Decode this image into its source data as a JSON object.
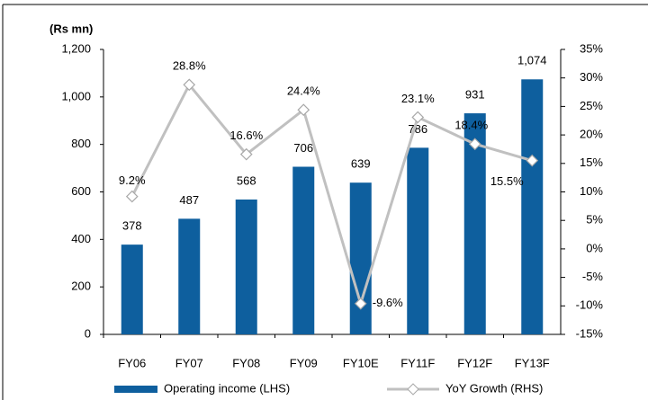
{
  "chart_data": {
    "type": "bar",
    "y_label": "(Rs mn)",
    "categories": [
      "FY06",
      "FY07",
      "FY08",
      "FY09",
      "FY10E",
      "FY11F",
      "FY12F",
      "FY13F"
    ],
    "series": [
      {
        "name": "Operating income (LHS)",
        "type": "bar",
        "color": "#0e5f9e",
        "values": [
          378,
          487,
          568,
          706,
          639,
          786,
          931,
          1074
        ],
        "value_labels": [
          "378",
          "487",
          "568",
          "706",
          "639",
          "786",
          "931",
          "1,074"
        ]
      },
      {
        "name": "YoY Growth (RHS)",
        "type": "line",
        "axis": "y2",
        "color": "#c0c0c0",
        "values": [
          9.2,
          28.8,
          16.6,
          24.4,
          -9.6,
          23.1,
          18.4,
          15.5
        ],
        "value_labels": [
          "9.2%",
          "28.8%",
          "16.6%",
          "24.4%",
          "-9.6%",
          "23.1%",
          "18.4%",
          "15.5%"
        ]
      }
    ],
    "ylim": [
      0,
      1200
    ],
    "yticks": [
      0,
      200,
      400,
      600,
      800,
      {
        "value": 1000,
        "label": "1,000"
      },
      {
        "value": 1200,
        "label": "1,200"
      }
    ],
    "y2lim": [
      -15,
      35
    ],
    "y2ticks": [
      {
        "value": -15,
        "label": "-15%"
      },
      {
        "value": -10,
        "label": "-10%"
      },
      {
        "value": -5,
        "label": "-5%"
      },
      {
        "value": 0,
        "label": "0%"
      },
      {
        "value": 5,
        "label": "5%"
      },
      {
        "value": 10,
        "label": "10%"
      },
      {
        "value": 15,
        "label": "15%"
      },
      {
        "value": 20,
        "label": "20%"
      },
      {
        "value": 25,
        "label": "25%"
      },
      {
        "value": 30,
        "label": "30%"
      },
      {
        "value": 35,
        "label": "35%"
      }
    ],
    "grid": false
  }
}
